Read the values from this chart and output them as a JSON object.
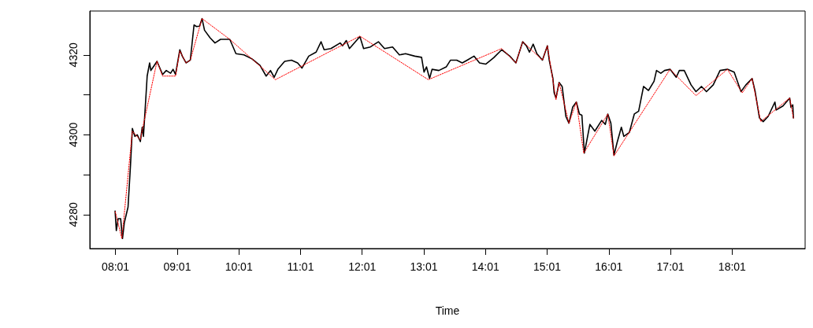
{
  "chart_data": {
    "type": "line",
    "xlabel": "Time",
    "marker": "none",
    "grid": false,
    "xlim": [
      7.6,
      19.2
    ],
    "ylim": [
      4271.5,
      4331
    ],
    "xticks": [
      {
        "value": 8.0167,
        "label": "08:01"
      },
      {
        "value": 9.0167,
        "label": "09:01"
      },
      {
        "value": 10.0167,
        "label": "10:01"
      },
      {
        "value": 11.0167,
        "label": "11:01"
      },
      {
        "value": 12.0167,
        "label": "12:01"
      },
      {
        "value": 13.0167,
        "label": "13:01"
      },
      {
        "value": 14.0167,
        "label": "14:01"
      },
      {
        "value": 15.0167,
        "label": "15:01"
      },
      {
        "value": 16.0167,
        "label": "16:01"
      },
      {
        "value": 17.0167,
        "label": "17:01"
      },
      {
        "value": 18.0167,
        "label": "18:01"
      }
    ],
    "yticks": [
      4280,
      {
        "value": 4290,
        "label": null
      },
      4300,
      {
        "value": 4310,
        "label": null
      },
      4320
    ],
    "series": [
      {
        "color": "#000000",
        "line_style": "solid",
        "x": [
          8.01,
          8.03,
          8.06,
          8.1,
          8.13,
          8.16,
          8.22,
          8.26,
          8.29,
          8.33,
          8.37,
          8.42,
          8.45,
          8.47,
          8.52,
          8.53,
          8.57,
          8.59,
          8.63,
          8.69,
          8.78,
          8.84,
          8.91,
          8.95,
          8.99,
          9.06,
          9.1,
          9.16,
          9.23,
          9.29,
          9.33,
          9.38,
          9.42,
          9.46,
          9.55,
          9.63,
          9.72,
          9.87,
          9.97,
          10.1,
          10.23,
          10.36,
          10.46,
          10.53,
          10.59,
          10.65,
          10.76,
          10.87,
          10.97,
          11.04,
          11.15,
          11.27,
          11.35,
          11.4,
          11.51,
          11.66,
          11.7,
          11.76,
          11.81,
          11.98,
          12.04,
          12.15,
          12.28,
          12.38,
          12.51,
          12.62,
          12.72,
          12.87,
          12.98,
          13.02,
          13.06,
          13.11,
          13.15,
          13.26,
          13.38,
          13.45,
          13.55,
          13.64,
          13.72,
          13.83,
          13.92,
          14.02,
          14.15,
          14.28,
          14.41,
          14.51,
          14.62,
          14.68,
          14.73,
          14.79,
          14.85,
          14.94,
          15.02,
          15.05,
          15.11,
          15.13,
          15.16,
          15.21,
          15.26,
          15.32,
          15.37,
          15.43,
          15.49,
          15.54,
          15.58,
          15.62,
          15.71,
          15.79,
          15.9,
          15.96,
          16.0,
          16.05,
          16.1,
          16.15,
          16.22,
          16.26,
          16.35,
          16.43,
          16.5,
          16.58,
          16.66,
          16.75,
          16.79,
          16.86,
          16.92,
          17.01,
          17.11,
          17.16,
          17.24,
          17.35,
          17.43,
          17.52,
          17.6,
          17.71,
          17.82,
          17.94,
          18.05,
          18.16,
          18.24,
          18.34,
          18.39,
          18.46,
          18.52,
          18.6,
          18.71,
          18.73,
          18.84,
          18.95,
          18.97,
          19.0,
          19.01
        ],
        "values": [
          4280.9,
          4276.0,
          4279.0,
          4279.0,
          4274.0,
          4278.0,
          4281.9,
          4292.4,
          4301.6,
          4299.6,
          4300.0,
          4298.3,
          4301.9,
          4299.6,
          4312.1,
          4314.7,
          4318.0,
          4316.1,
          4317.0,
          4318.4,
          4315.1,
          4316.1,
          4315.4,
          4316.4,
          4315.1,
          4321.3,
          4319.7,
          4318.0,
          4318.7,
          4327.5,
          4327.1,
          4327.2,
          4329.1,
          4326.2,
          4324.3,
          4323.0,
          4323.9,
          4323.9,
          4320.3,
          4320.0,
          4319.0,
          4317.4,
          4314.7,
          4316.1,
          4314.4,
          4316.4,
          4318.4,
          4318.7,
          4318.0,
          4316.7,
          4319.7,
          4320.7,
          4323.3,
          4321.3,
          4321.6,
          4323.0,
          4322.3,
          4323.6,
          4321.6,
          4324.6,
          4321.6,
          4322.0,
          4323.3,
          4321.6,
          4322.0,
          4320.0,
          4320.3,
          4319.7,
          4319.4,
          4315.7,
          4317.0,
          4314.1,
          4316.4,
          4316.1,
          4317.0,
          4318.7,
          4318.7,
          4318.0,
          4318.7,
          4319.7,
          4318.0,
          4317.7,
          4319.3,
          4321.3,
          4319.7,
          4318.0,
          4323.3,
          4322.3,
          4320.7,
          4322.7,
          4320.3,
          4318.7,
          4322.3,
          4318.7,
          4314.1,
          4310.5,
          4309.2,
          4313.1,
          4312.1,
          4304.6,
          4302.9,
          4306.9,
          4308.2,
          4305.2,
          4304.9,
          4295.4,
          4302.6,
          4300.9,
          4303.6,
          4302.6,
          4305.2,
          4302.9,
          4294.9,
          4298.0,
          4301.9,
          4299.6,
          4300.6,
          4305.2,
          4305.9,
          4312.1,
          4311.1,
          4313.4,
          4316.1,
          4315.4,
          4316.1,
          4316.4,
          4314.4,
          4316.1,
          4316.1,
          4312.5,
          4310.8,
          4312.1,
          4310.8,
          4312.5,
          4316.1,
          4316.4,
          4315.7,
          4310.8,
          4312.5,
          4314.1,
          4310.8,
          4304.2,
          4303.3,
          4304.6,
          4308.2,
          4306.2,
          4307.2,
          4309.2,
          4306.9,
          4307.5,
          4304.2
        ]
      },
      {
        "color": "#ff0000",
        "line_style": "dotted",
        "x": [
          8.01,
          8.12,
          8.29,
          8.42,
          8.46,
          8.69,
          8.78,
          8.99,
          9.06,
          9.16,
          9.23,
          9.42,
          9.87,
          10.61,
          11.51,
          11.98,
          13.09,
          14.28,
          14.51,
          14.62,
          14.94,
          15.02,
          15.16,
          15.21,
          15.37,
          15.49,
          15.61,
          16.0,
          16.1,
          17.01,
          17.43,
          17.94,
          18.18,
          18.34,
          18.48,
          18.95,
          19.01
        ],
        "values": [
          4280.9,
          4274.0,
          4300.9,
          4298.7,
          4301.9,
          4318.4,
          4314.7,
          4314.7,
          4321.0,
          4318.0,
          4318.7,
          4329.1,
          4323.9,
          4313.8,
          4321.0,
          4324.7,
          4313.8,
          4321.6,
          4318.0,
          4323.3,
          4318.7,
          4322.3,
          4308.8,
          4313.1,
          4302.9,
          4308.2,
          4295.4,
          4305.2,
          4294.7,
          4316.4,
          4309.8,
          4316.4,
          4310.5,
          4314.1,
          4303.3,
          4309.2,
          4304.2
        ]
      }
    ]
  }
}
